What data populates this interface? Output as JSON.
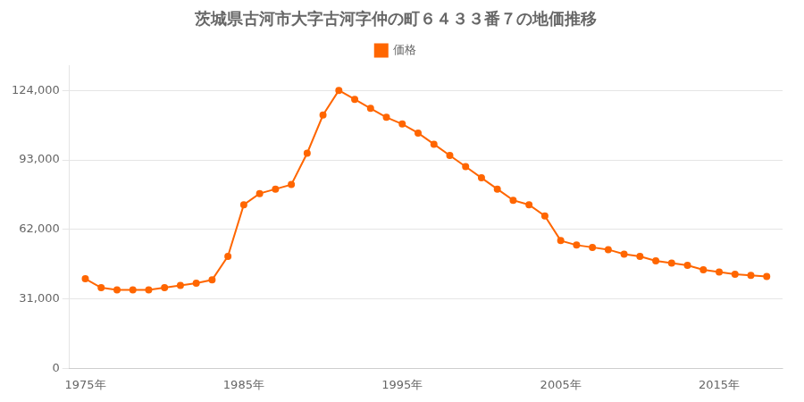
{
  "chart_data": {
    "type": "line",
    "title": "茨城県古河市大字古河字仲の町６４３３番７の地価推移",
    "x": [
      1975,
      1976,
      1977,
      1978,
      1979,
      1980,
      1981,
      1982,
      1983,
      1984,
      1985,
      1986,
      1987,
      1988,
      1989,
      1990,
      1991,
      1992,
      1993,
      1994,
      1995,
      1996,
      1997,
      1998,
      1999,
      2000,
      2001,
      2002,
      2003,
      2004,
      2005,
      2006,
      2007,
      2008,
      2009,
      2010,
      2011,
      2012,
      2013,
      2014,
      2015,
      2016,
      2017,
      2018
    ],
    "series": [
      {
        "name": "価格",
        "color": "#FF6600",
        "marker": "circle",
        "values": [
          40000,
          36000,
          35000,
          35000,
          35000,
          36000,
          37000,
          38000,
          39500,
          50000,
          73000,
          78000,
          80000,
          82000,
          96000,
          113000,
          124000,
          120000,
          116000,
          112000,
          109000,
          105000,
          100000,
          95000,
          90000,
          85000,
          80000,
          75000,
          73000,
          68000,
          57000,
          55000,
          54000,
          53000,
          51000,
          50000,
          48000,
          47000,
          46000,
          44000,
          43000,
          42000,
          41500,
          41000
        ]
      }
    ],
    "xlim": [
      1974,
      2019
    ],
    "xticks": [
      {
        "value": 1975,
        "label": "1975年"
      },
      {
        "value": 1985,
        "label": "1985年"
      },
      {
        "value": 1995,
        "label": "1995年"
      },
      {
        "value": 2005,
        "label": "2005年"
      },
      {
        "value": 2015,
        "label": "2015年"
      }
    ],
    "ylim": [
      0,
      135000
    ],
    "yticks": [
      0,
      {
        "value": 31000,
        "label": "31,000"
      },
      {
        "value": 62000,
        "label": "62,000"
      },
      {
        "value": 93000,
        "label": "93,000"
      },
      {
        "value": 124000,
        "label": "124,000"
      }
    ],
    "grid": "y",
    "legend": "top"
  }
}
